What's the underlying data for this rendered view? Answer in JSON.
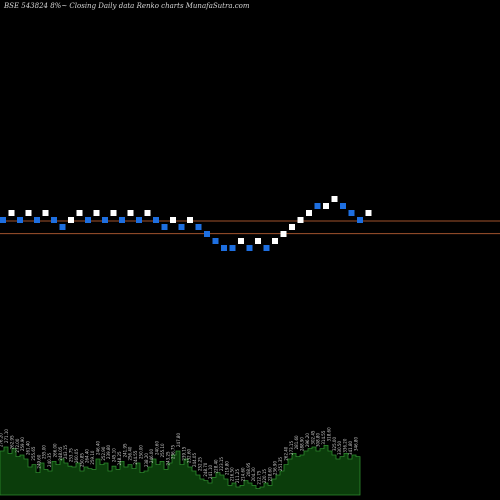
{
  "header": {
    "title": "BSE 543824  8%~  Closing Daily data  Renko  charts MunafaSutra.com"
  },
  "colors": {
    "background": "#000000",
    "up_brick": "#ffffff",
    "down_brick": "#1e6fe0",
    "reference_line": "#a0522d",
    "volume_fill": "#0b3d0b",
    "volume_stroke": "#2e8b2e",
    "label": "#cfcfcf"
  },
  "chart_data": {
    "type": "renko",
    "brick_directions": [
      "down",
      "up",
      "down",
      "up",
      "down",
      "up",
      "down",
      "down",
      "up",
      "up",
      "down",
      "up",
      "down",
      "up",
      "down",
      "up",
      "down",
      "up",
      "down",
      "down",
      "up",
      "down",
      "up",
      "down",
      "down",
      "down",
      "down",
      "down",
      "up",
      "down",
      "up",
      "down",
      "up",
      "up",
      "up",
      "up",
      "up",
      "down",
      "up",
      "up",
      "down",
      "down",
      "down",
      "up"
    ],
    "brick_levels": [
      0,
      1,
      0,
      1,
      0,
      1,
      0,
      -1,
      0,
      1,
      0,
      1,
      0,
      1,
      0,
      1,
      0,
      1,
      0,
      -1,
      0,
      -1,
      0,
      -1,
      -2,
      -3,
      -4,
      -4,
      -3,
      -4,
      -3,
      -4,
      -3,
      -2,
      -1,
      0,
      1,
      2,
      2,
      3,
      2,
      1,
      0,
      1
    ],
    "reference_levels": [
      0.0,
      -1.8
    ],
    "volume": {
      "bars": [
        0.55,
        0.6,
        0.52,
        0.58,
        0.48,
        0.5,
        0.45,
        0.35,
        0.38,
        0.28,
        0.4,
        0.32,
        0.3,
        0.42,
        0.38,
        0.45,
        0.4,
        0.36,
        0.35,
        0.4,
        0.3,
        0.35,
        0.33,
        0.32,
        0.45,
        0.38,
        0.4,
        0.3,
        0.36,
        0.32,
        0.42,
        0.35,
        0.38,
        0.33,
        0.4,
        0.28,
        0.3,
        0.35,
        0.45,
        0.38,
        0.42,
        0.32,
        0.4,
        0.5,
        0.55,
        0.38,
        0.45,
        0.35,
        0.3,
        0.25,
        0.2,
        0.18,
        0.15,
        0.22,
        0.28,
        0.25,
        0.2,
        0.12,
        0.15,
        0.1,
        0.12,
        0.18,
        0.15,
        0.12,
        0.08,
        0.1,
        0.15,
        0.12,
        0.2,
        0.25,
        0.3,
        0.38,
        0.45,
        0.52,
        0.48,
        0.5,
        0.55,
        0.58,
        0.6,
        0.55,
        0.58,
        0.62,
        0.55,
        0.5,
        0.45,
        0.48,
        0.52,
        0.45,
        0.5,
        0.48
      ],
      "labels": [
        "276.20",
        "271.10",
        "262.95",
        "272.00",
        "259.90",
        "261.40",
        "255.65",
        "249.60",
        "255.00",
        "240.35",
        "266.00",
        "248.05",
        "243.15",
        "253.75",
        "260.05",
        "250.85",
        "264.40",
        "259.10",
        "246.40",
        "252.90",
        "239.80",
        "245.10",
        "248.25",
        "241.95",
        "256.40",
        "244.55",
        "250.00",
        "238.20",
        "246.00",
        "240.60",
        "255.10",
        "243.25",
        "236.75",
        "247.80",
        "239.15",
        "232.60",
        "244.05",
        "252.25",
        "248.70",
        "241.10",
        "228.40",
        "223.15",
        "219.80",
        "216.50",
        "211.25",
        "214.60",
        "208.95",
        "204.30",
        "212.75",
        "220.15",
        "228.60",
        "236.90",
        "251.35",
        "262.40",
        "273.15",
        "281.60",
        "288.90",
        "296.20",
        "302.45",
        "308.80",
        "314.55",
        "318.60",
        "325.00",
        "330.50",
        "336.20",
        "341.80",
        "346.80"
      ]
    }
  }
}
